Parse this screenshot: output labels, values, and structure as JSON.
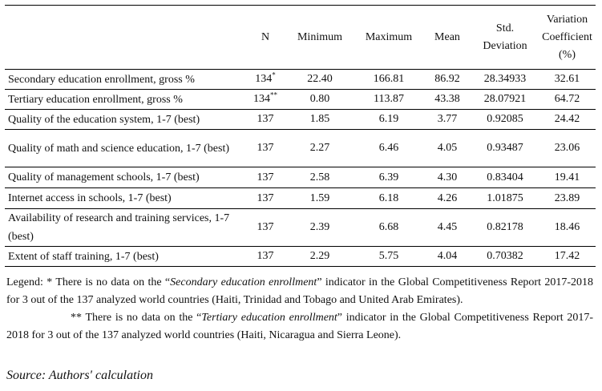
{
  "table": {
    "columns": {
      "indicator": "",
      "n": "N",
      "min": "Minimum",
      "max": "Maximum",
      "mean": "Mean",
      "std": "Std. Deviation",
      "cv": "Variation Coefficient (%)"
    },
    "rows": [
      {
        "label": "Secondary education enrollment, gross %",
        "n": "134",
        "n_mark": "*",
        "min": "22.40",
        "max": "166.81",
        "mean": "86.92",
        "std": "28.34933",
        "cv": "32.61"
      },
      {
        "label": "Tertiary education enrollment, gross %",
        "n": "134",
        "n_mark": "**",
        "min": "0.80",
        "max": "113.87",
        "mean": "43.38",
        "std": "28.07921",
        "cv": "64.72"
      },
      {
        "label": "Quality of the education system, 1-7 (best)",
        "n": "137",
        "n_mark": "",
        "min": "1.85",
        "max": "6.19",
        "mean": "3.77",
        "std": "0.92085",
        "cv": "24.42"
      },
      {
        "label": "Quality of math and science education, 1-7 (best)",
        "n": "137",
        "n_mark": "",
        "min": "2.27",
        "max": "6.46",
        "mean": "4.05",
        "std": "0.93487",
        "cv": "23.06"
      },
      {
        "label": "Quality of management schools, 1-7 (best)",
        "n": "137",
        "n_mark": "",
        "min": "2.58",
        "max": "6.39",
        "mean": "4.30",
        "std": "0.83404",
        "cv": "19.41"
      },
      {
        "label": "Internet access in schools, 1-7 (best)",
        "n": "137",
        "n_mark": "",
        "min": "1.59",
        "max": "6.18",
        "mean": "4.26",
        "std": "1.01875",
        "cv": "23.89"
      },
      {
        "label": "Availability of research and training services, 1-7 (best)",
        "n": "137",
        "n_mark": "",
        "min": "2.39",
        "max": "6.68",
        "mean": "4.45",
        "std": "0.82178",
        "cv": "18.46"
      },
      {
        "label": "Extent of staff training, 1-7 (best)",
        "n": "137",
        "n_mark": "",
        "min": "2.29",
        "max": "5.75",
        "mean": "4.04",
        "std": "0.70382",
        "cv": "17.42"
      }
    ]
  },
  "legend": {
    "note1": {
      "prefix": "Legend: * There is no data on the “",
      "emph": "Secondary education enrollment",
      "suffix": "” indicator in the Global Competitiveness Report 2017-2018 for 3 out of the 137 analyzed world countries (Haiti, Trinidad and Tobago and United Arab Emirates)."
    },
    "note2": {
      "prefix": "** There is no data on the “",
      "emph": "Tertiary education enrollment",
      "suffix": "” indicator in the Global Competitiveness Report 2017-2018 for 3 out of the 137 analyzed world countries (Haiti, Nicaragua and Sierra Leone)."
    }
  },
  "source": "Source: Authors' calculation"
}
